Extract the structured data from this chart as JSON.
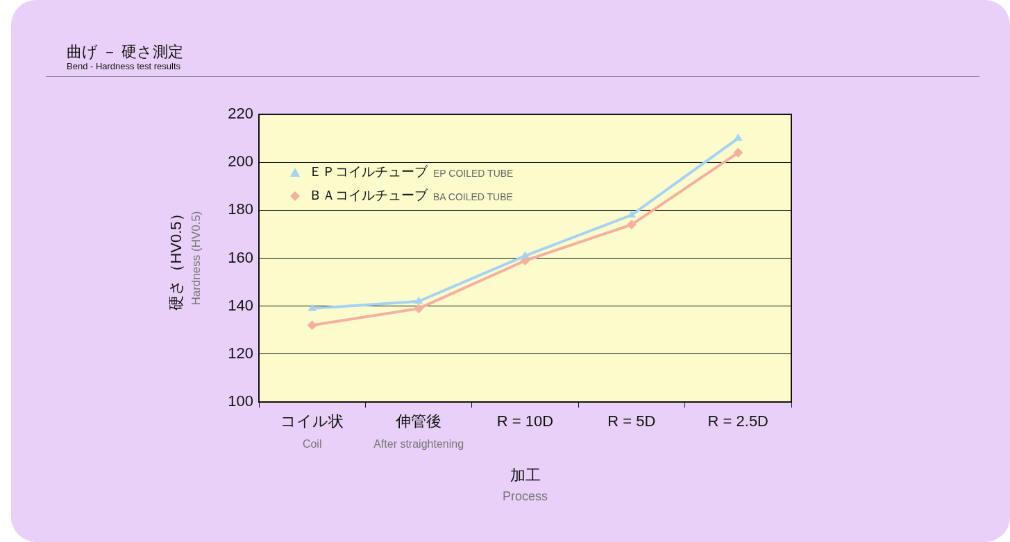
{
  "chart_data": {
    "type": "line",
    "title": "曲げ － 硬さ測定",
    "subtitle": "Bend - Hardness test results",
    "xlabel": "加工\nProcess",
    "ylabel": "硬さ（HV0.5）\nHardness (HV0.5)",
    "categories": [
      "コイル状\nCoil",
      "伸管後\nAfter straightening",
      "R = 10D",
      "R = 5D",
      "R = 2.5D"
    ],
    "series": [
      {
        "name": "ＥＰコイルチューブ EP COILED TUBE",
        "color": "#a6d2f5",
        "marker": "triangle",
        "values": [
          139,
          142,
          161,
          178,
          210
        ]
      },
      {
        "name": "ＢＡコイルチューブ BA COILED TUBE",
        "color": "#f5b0a0",
        "marker": "diamond",
        "values": [
          132,
          139,
          159,
          174,
          204
        ]
      }
    ],
    "ylim": [
      100,
      220
    ],
    "yticks": [
      100,
      120,
      140,
      160,
      180,
      200,
      220
    ],
    "grid": "y",
    "legend": "top left"
  }
}
